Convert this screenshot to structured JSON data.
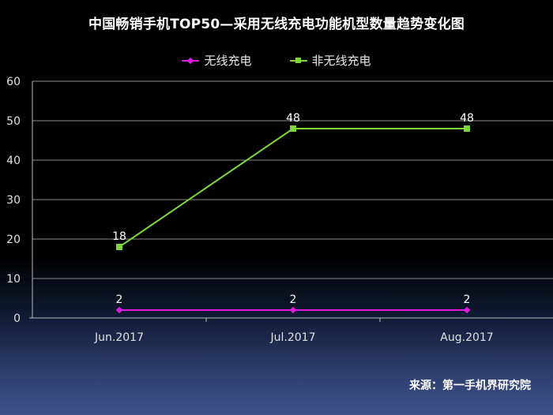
{
  "title": "中国畅销手机TOP50—采用无线充电功能机型数量趋势变化图",
  "source": "来源：第一手机界研究院",
  "chart_data": {
    "type": "line",
    "title": "中国畅销手机TOP50—采用无线充电功能机型数量趋势变化图",
    "categories": [
      "Jun.2017",
      "Jul.2017",
      "Aug.2017"
    ],
    "ylim": [
      0,
      60
    ],
    "yticks": [
      "0",
      "10",
      "20",
      "30",
      "40",
      "50",
      "60"
    ],
    "grid": true,
    "legend_position": "top",
    "series": [
      {
        "name": "无线充电",
        "values": [
          2,
          2,
          2
        ],
        "color": "#e11ae1",
        "marker": "diamond"
      },
      {
        "name": "非无线充电",
        "values": [
          18,
          48,
          48
        ],
        "color": "#7dd63a",
        "marker": "square"
      }
    ]
  }
}
